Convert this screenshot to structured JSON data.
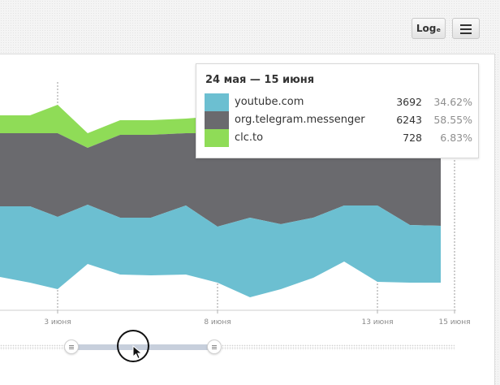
{
  "header": {
    "log_button_label": "Logₑ",
    "menu_icon": "hamburger-icon"
  },
  "tooltip": {
    "title": "24 мая — 15 июня",
    "rows": [
      {
        "name": "youtube.com",
        "value": "3692",
        "percent": "34.62%",
        "color": "#6cbfd1"
      },
      {
        "name": "org.telegram.messenger",
        "value": "6243",
        "percent": "58.55%",
        "color": "#6a6a6e"
      },
      {
        "name": "clc.to",
        "value": "728",
        "percent": "6.83%",
        "color": "#8fdc57"
      }
    ]
  },
  "chart_data": {
    "type": "area",
    "stacked": true,
    "x": [
      "",
      "",
      "",
      "3 июня",
      "",
      "",
      "",
      "",
      "8 июня",
      "",
      "",
      "",
      "",
      "13 июня",
      "",
      "15 июня"
    ],
    "tick_labels": [
      "3 июня",
      "8 июня",
      "13 июня",
      "15 июня"
    ],
    "series": [
      {
        "name": "youtube.com",
        "color": "#6cbfd1"
      },
      {
        "name": "org.telegram.messenger",
        "color": "#6a6a6e"
      },
      {
        "name": "clc.to",
        "color": "#8fdc57"
      }
    ],
    "grid": "vertical dashed lines at labelled dates"
  },
  "slider": {
    "range_start": 0.158,
    "range_end": 0.472
  }
}
